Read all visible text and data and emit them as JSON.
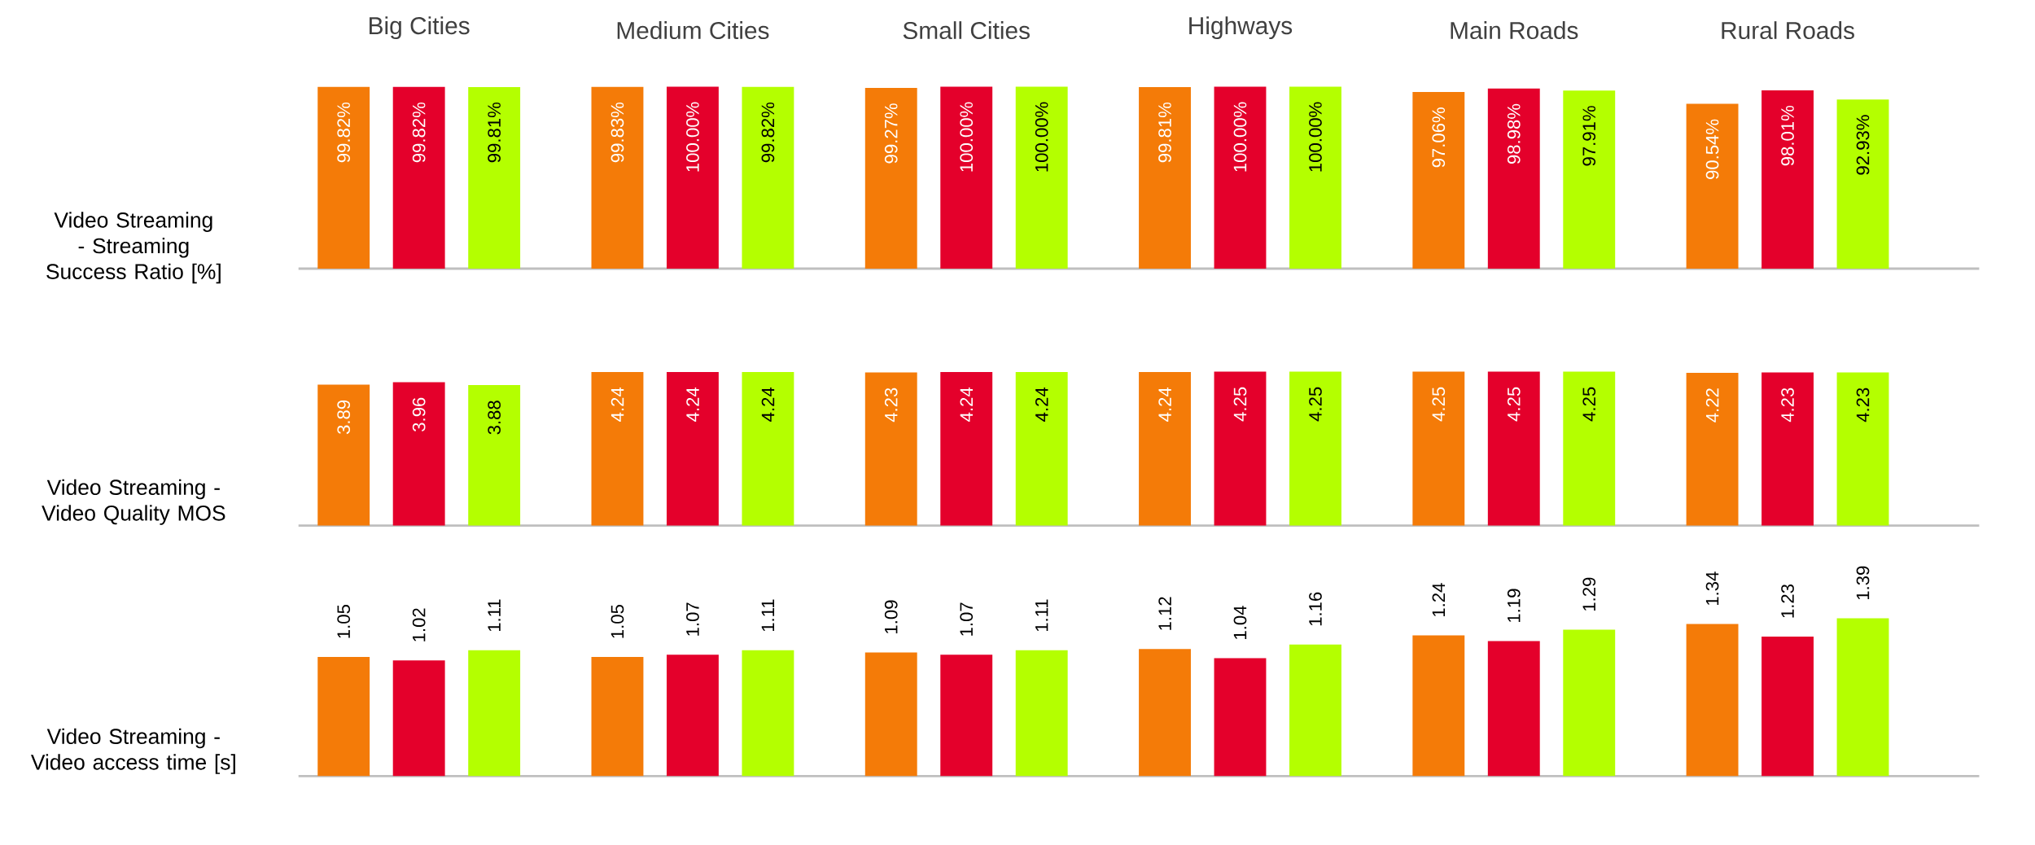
{
  "chart_data": [
    {
      "type": "bar",
      "ylabel": "Video Streaming - Streaming Success Ratio [%]",
      "categories": [
        "Big Cities",
        "Medium Cities",
        "Small Cities",
        "Highways",
        "Main Roads",
        "Rural Roads"
      ],
      "tick_labels": "x",
      "series": [
        {
          "color": "#f47b08",
          "values": [
            99.82,
            99.83,
            99.27,
            99.81,
            97.06,
            90.54
          ],
          "value_labels": [
            "99.82%",
            "99.83%",
            "99.27%",
            "99.81%",
            "97.06%",
            "90.54%"
          ]
        },
        {
          "color": "#e4002b",
          "values": [
            99.82,
            100.0,
            100.0,
            100.0,
            98.98,
            98.01
          ],
          "value_labels": [
            "99.82%",
            "100.00%",
            "100.00%",
            "100.00%",
            "98.98%",
            "98.01%"
          ]
        },
        {
          "color": "#b4ff00",
          "values": [
            99.81,
            99.82,
            100.0,
            100.0,
            97.91,
            92.93
          ],
          "value_labels": [
            "99.81%",
            "99.82%",
            "100.00%",
            "100.00%",
            "97.91%",
            "92.93%"
          ]
        }
      ]
    },
    {
      "type": "bar",
      "ylabel": "Video Streaming - Video Quality MOS",
      "categories": [
        null,
        null,
        null,
        null,
        null,
        null
      ],
      "tick_labels": false,
      "series": [
        {
          "color": "#f47b08",
          "values": [
            3.89,
            4.24,
            4.23,
            4.24,
            4.25,
            4.22
          ],
          "value_labels": [
            "3.89",
            "4.24",
            "4.23",
            "4.24",
            "4.25",
            "4.22"
          ]
        },
        {
          "color": "#e4002b",
          "values": [
            3.96,
            4.24,
            4.24,
            4.25,
            4.25,
            4.23
          ],
          "value_labels": [
            "3.96",
            "4.24",
            "4.24",
            "4.25",
            "4.25",
            "4.23"
          ]
        },
        {
          "color": "#b4ff00",
          "values": [
            3.88,
            4.24,
            4.24,
            4.25,
            4.25,
            4.23
          ],
          "value_labels": [
            "3.88",
            "4.24",
            "4.24",
            "4.25",
            "4.25",
            "4.23"
          ]
        }
      ]
    },
    {
      "type": "bar",
      "ylabel": "Video Streaming - Video access time [s]",
      "categories": [
        null,
        null,
        null,
        null,
        null,
        null
      ],
      "tick_labels": false,
      "series": [
        {
          "color": "#f47b08",
          "values": [
            1.05,
            1.05,
            1.09,
            1.12,
            1.24,
            1.34
          ],
          "value_labels": [
            "1.05",
            "1.05",
            "1.09",
            "1.12",
            "1.24",
            "1.34"
          ]
        },
        {
          "color": "#e4002b",
          "values": [
            1.02,
            1.07,
            1.07,
            1.04,
            1.19,
            1.23
          ],
          "value_labels": [
            "1.02",
            "1.07",
            "1.07",
            "1.04",
            "1.19",
            "1.23"
          ]
        },
        {
          "color": "#b4ff00",
          "values": [
            1.11,
            1.11,
            1.11,
            1.16,
            1.29,
            1.39
          ],
          "value_labels": [
            "1.11",
            "1.11",
            "1.11",
            "1.16",
            "1.29",
            "1.39"
          ]
        }
      ]
    }
  ]
}
